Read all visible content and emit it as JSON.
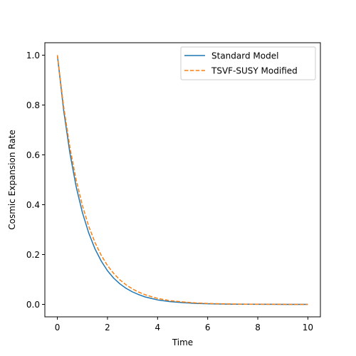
{
  "chart_data": {
    "type": "line",
    "title": "",
    "xlabel": "Time",
    "ylabel": "Cosmic Expansion Rate",
    "xlim": [
      -0.5,
      10.5
    ],
    "ylim": [
      -0.05,
      1.05
    ],
    "xticks": [
      0,
      2,
      4,
      6,
      8,
      10
    ],
    "yticks": [
      0.0,
      0.2,
      0.4,
      0.6,
      0.8,
      1.0
    ],
    "xtick_labels": [
      "0",
      "2",
      "4",
      "6",
      "8",
      "10"
    ],
    "ytick_labels": [
      "0.0",
      "0.2",
      "0.4",
      "0.6",
      "0.8",
      "1.0"
    ],
    "grid": false,
    "legend_position": "top-right",
    "x": [
      0,
      0.25,
      0.5,
      0.75,
      1,
      1.25,
      1.5,
      1.75,
      2,
      2.25,
      2.5,
      2.75,
      3,
      3.25,
      3.5,
      3.75,
      4,
      4.5,
      5,
      5.5,
      6,
      6.5,
      7,
      7.5,
      8,
      8.5,
      9,
      9.5,
      10
    ],
    "series": [
      {
        "name": "Standard Model",
        "color": "#1f77b4",
        "style": "solid",
        "values": [
          1.0,
          0.779,
          0.607,
          0.472,
          0.368,
          0.287,
          0.223,
          0.174,
          0.135,
          0.105,
          0.082,
          0.064,
          0.05,
          0.039,
          0.03,
          0.024,
          0.018,
          0.011,
          0.007,
          0.004,
          0.0025,
          0.0015,
          0.0009,
          0.0006,
          0.0003,
          0.0002,
          0.0001,
          0.0001,
          0.0
        ]
      },
      {
        "name": "TSVF-SUSY Modified",
        "color": "#ff7f0e",
        "style": "dashed",
        "values": [
          1.0,
          0.794,
          0.63,
          0.499,
          0.396,
          0.314,
          0.249,
          0.197,
          0.156,
          0.124,
          0.098,
          0.078,
          0.062,
          0.049,
          0.039,
          0.031,
          0.024,
          0.015,
          0.01,
          0.006,
          0.0037,
          0.0023,
          0.0015,
          0.0009,
          0.0006,
          0.0004,
          0.0002,
          0.0001,
          0.0001
        ]
      }
    ]
  }
}
